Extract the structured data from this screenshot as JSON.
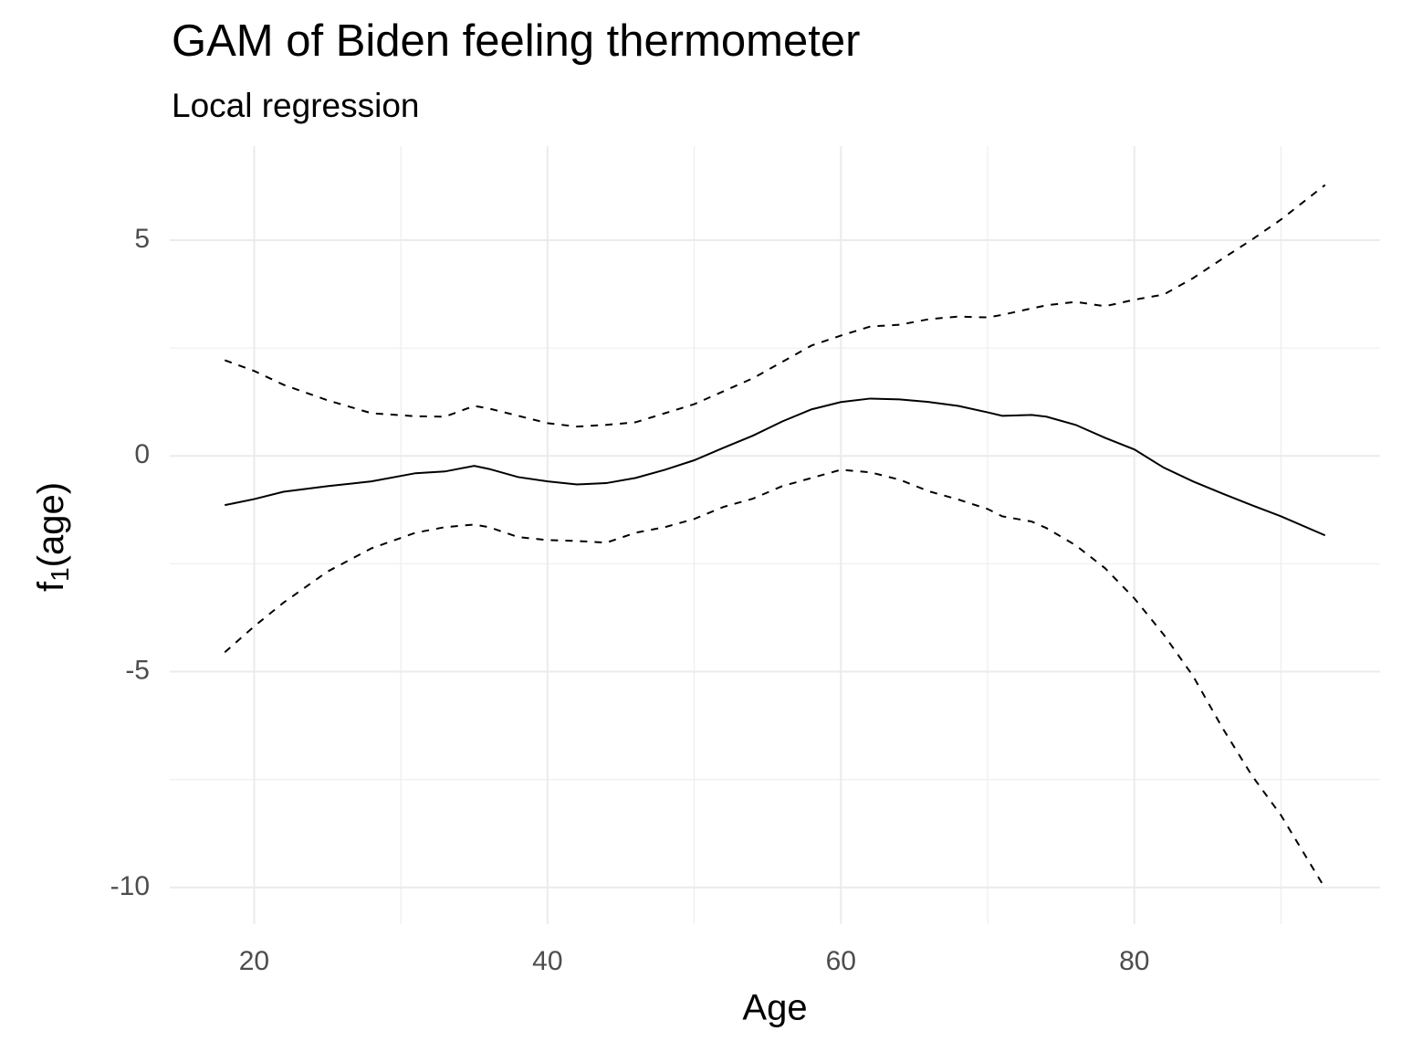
{
  "chart_data": {
    "type": "line",
    "title": "GAM of Biden feeling thermometer",
    "subtitle": "Local regression",
    "xlabel": "Age",
    "ylabel": {
      "main": "f",
      "subscript": "1",
      "rest": "(age)"
    },
    "x": [
      18,
      20,
      22,
      25,
      28,
      31,
      33,
      35,
      36,
      38,
      40,
      42,
      44,
      46,
      48,
      50,
      52,
      54,
      56,
      58,
      60,
      62,
      64,
      66,
      68,
      70,
      71,
      73,
      74,
      76,
      78,
      80,
      82,
      84,
      86,
      88,
      90,
      93
    ],
    "series": [
      {
        "color": "#000000",
        "dashed": false,
        "values": [
          -1.14,
          -1.0,
          -0.83,
          -0.7,
          -0.59,
          -0.4,
          -0.36,
          -0.23,
          -0.3,
          -0.49,
          -0.59,
          -0.66,
          -0.63,
          -0.51,
          -0.32,
          -0.1,
          0.19,
          0.47,
          0.8,
          1.08,
          1.25,
          1.33,
          1.31,
          1.25,
          1.16,
          1.01,
          0.93,
          0.95,
          0.91,
          0.72,
          0.42,
          0.15,
          -0.27,
          -0.59,
          -0.87,
          -1.14,
          -1.4,
          -1.84
        ]
      },
      {
        "color": "#000000",
        "dashed": true,
        "values": [
          2.22,
          1.97,
          1.65,
          1.29,
          0.99,
          0.92,
          0.91,
          1.16,
          1.1,
          0.93,
          0.76,
          0.68,
          0.72,
          0.78,
          0.99,
          1.2,
          1.5,
          1.8,
          2.18,
          2.56,
          2.79,
          3.0,
          3.04,
          3.17,
          3.23,
          3.21,
          3.27,
          3.42,
          3.49,
          3.57,
          3.47,
          3.62,
          3.74,
          4.12,
          4.57,
          5.01,
          5.48,
          6.28
        ]
      },
      {
        "color": "#000000",
        "dashed": true,
        "values": [
          -4.55,
          -3.95,
          -3.4,
          -2.68,
          -2.14,
          -1.78,
          -1.65,
          -1.59,
          -1.65,
          -1.88,
          -1.95,
          -1.97,
          -2.01,
          -1.78,
          -1.65,
          -1.46,
          -1.18,
          -0.99,
          -0.7,
          -0.51,
          -0.32,
          -0.38,
          -0.55,
          -0.82,
          -1.01,
          -1.23,
          -1.4,
          -1.52,
          -1.67,
          -2.07,
          -2.6,
          -3.3,
          -4.14,
          -5.1,
          -6.3,
          -7.4,
          -8.33,
          -10.02
        ]
      }
    ],
    "xlim": [
      14.25,
      96.75
    ],
    "xticks": [
      20,
      40,
      60,
      80
    ],
    "xminorticks": [
      30,
      50,
      70,
      90
    ],
    "ylim": [
      -10.85,
      7.18
    ],
    "yticks": [
      -10,
      -5,
      0,
      5
    ],
    "yminorticks": [
      -7.5,
      -2.5,
      2.5
    ],
    "grid": true
  }
}
